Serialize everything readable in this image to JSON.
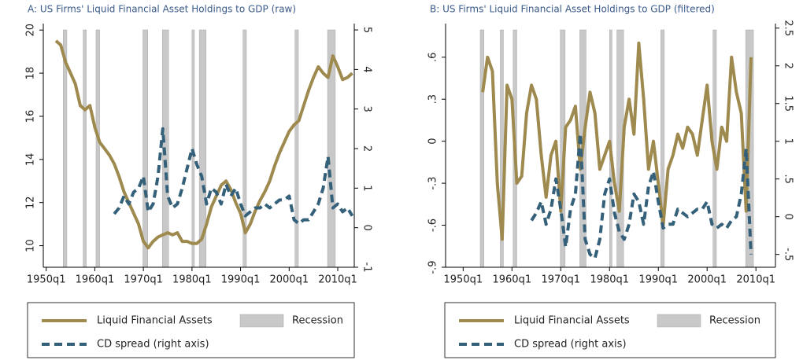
{
  "chart_data": [
    {
      "type": "line",
      "title": "A: US Firms' Liquid Financial Asset Holdings to GDP (raw)",
      "xlim": [
        1949.4,
        2013.4
      ],
      "xticks": [
        {
          "value": 1950,
          "label": "1950q1"
        },
        {
          "value": 1960,
          "label": "1960q1"
        },
        {
          "value": 1970,
          "label": "1970q1"
        },
        {
          "value": 1980,
          "label": "1980q1"
        },
        {
          "value": 1990,
          "label": "1990q1"
        },
        {
          "value": 2000,
          "label": "2000q1"
        },
        {
          "value": 2010,
          "label": "2010q1"
        }
      ],
      "ylim": [
        9,
        20.3
      ],
      "yticks": [
        10,
        12,
        14,
        16,
        18,
        20
      ],
      "y2lim": [
        -1,
        5.16
      ],
      "y2ticks": [
        -1,
        0,
        1,
        2,
        3,
        4,
        5
      ],
      "shading": {
        "name": "Recession",
        "color": "#c8c8c8",
        "periods": [
          [
            1953.5,
            1954.25
          ],
          [
            1957.6,
            1958.25
          ],
          [
            1960.25,
            1961.0
          ],
          [
            1969.9,
            1970.9
          ],
          [
            1973.9,
            1975.2
          ],
          [
            1980.0,
            1980.5
          ],
          [
            1981.5,
            1982.9
          ],
          [
            1990.5,
            1991.2
          ],
          [
            2001.2,
            2001.9
          ],
          [
            2007.9,
            2009.5
          ]
        ]
      },
      "series": [
        {
          "name": "Liquid Financial Assets",
          "color": "#9e8a4e",
          "style": "solid",
          "x": [
            1952,
            1953,
            1954,
            1955,
            1956,
            1957,
            1958,
            1959,
            1960,
            1961,
            1962,
            1963,
            1964,
            1965,
            1966,
            1967,
            1968,
            1969,
            1970,
            1971,
            1972,
            1973,
            1974,
            1975,
            1976,
            1977,
            1978,
            1979,
            1980,
            1981,
            1982,
            1983,
            1984,
            1985,
            1986,
            1987,
            1988,
            1989,
            1990,
            1991,
            1992,
            1993,
            1994,
            1995,
            1996,
            1997,
            1998,
            1999,
            2000,
            2001,
            2002,
            2003,
            2004,
            2005,
            2006,
            2007,
            2008,
            2009,
            2010,
            2011,
            2012,
            2013
          ],
          "values": [
            19.5,
            19.3,
            18.5,
            18.0,
            17.5,
            16.5,
            16.3,
            16.5,
            15.5,
            14.8,
            14.5,
            14.2,
            13.8,
            13.2,
            12.5,
            12.0,
            11.5,
            11.0,
            10.2,
            9.9,
            10.2,
            10.4,
            10.5,
            10.6,
            10.5,
            10.6,
            10.2,
            10.2,
            10.1,
            10.1,
            10.3,
            11.0,
            11.8,
            12.3,
            12.8,
            13.0,
            12.6,
            12.0,
            11.5,
            10.6,
            11.0,
            11.6,
            12.1,
            12.5,
            13.0,
            13.7,
            14.3,
            14.8,
            15.3,
            15.6,
            15.8,
            16.5,
            17.2,
            17.8,
            18.3,
            18.0,
            17.8,
            18.8,
            18.3,
            17.7,
            17.8,
            18.0
          ]
        },
        {
          "name": "CD spread (right axis)",
          "color": "#35607a",
          "style": "dashed",
          "axis": "y2",
          "x": [
            1964,
            1965,
            1966,
            1967,
            1968,
            1969,
            1970,
            1971,
            1972,
            1973,
            1974,
            1975,
            1976,
            1977,
            1978,
            1979,
            1980,
            1981,
            1982,
            1983,
            1984,
            1985,
            1986,
            1987,
            1988,
            1989,
            1990,
            1991,
            1992,
            1993,
            1994,
            1995,
            1996,
            1997,
            1998,
            1999,
            2000,
            2001,
            2002,
            2003,
            2004,
            2005,
            2006,
            2007,
            2008,
            2009,
            2010,
            2011,
            2012,
            2013
          ],
          "values": [
            0.35,
            0.5,
            0.8,
            0.6,
            0.9,
            1.0,
            1.3,
            0.4,
            0.6,
            1.3,
            2.5,
            0.8,
            0.5,
            0.6,
            1.0,
            1.5,
            2.0,
            1.6,
            1.3,
            0.6,
            1.0,
            0.9,
            0.6,
            1.1,
            0.8,
            1.0,
            0.6,
            0.3,
            0.4,
            0.5,
            0.5,
            0.6,
            0.5,
            0.6,
            0.7,
            0.7,
            0.8,
            0.2,
            0.1,
            0.2,
            0.2,
            0.4,
            0.6,
            1.0,
            1.8,
            0.5,
            0.6,
            0.4,
            0.5,
            0.3
          ]
        }
      ]
    },
    {
      "type": "line",
      "title": "B: US Firms' Liquid Financial Asset Holdings to GDP (filtered)",
      "xlim": [
        1946.4,
        2014
      ],
      "xticks": [
        {
          "value": 1950,
          "label": "1950q1"
        },
        {
          "value": 1960,
          "label": "1960q1"
        },
        {
          "value": 1970,
          "label": "1970q1"
        },
        {
          "value": 1980,
          "label": "1980q1"
        },
        {
          "value": 1990,
          "label": "1990q1"
        },
        {
          "value": 2000,
          "label": "2000q1"
        },
        {
          "value": 2010,
          "label": "2010q1"
        }
      ],
      "ylim": [
        -0.9,
        0.84
      ],
      "yticks": [
        {
          "value": -0.9,
          "label": "-.9"
        },
        {
          "value": -0.6,
          "label": "-.6"
        },
        {
          "value": -0.3,
          "label": "-.3"
        },
        0,
        {
          "value": 0.3,
          "label": ".3"
        },
        {
          "value": 0.6,
          "label": ".6"
        }
      ],
      "y2lim": [
        -0.67,
        2.56
      ],
      "y2ticks": [
        {
          "value": -0.5,
          "label": "-.5"
        },
        0,
        {
          "value": 0.5,
          "label": ".5"
        },
        1,
        {
          "value": 1.5,
          "label": "1.5"
        },
        2,
        {
          "value": 2.5,
          "label": "2.5"
        }
      ],
      "shading": {
        "name": "Recession",
        "color": "#c8c8c8",
        "periods": [
          [
            1953.5,
            1954.25
          ],
          [
            1957.6,
            1958.25
          ],
          [
            1960.25,
            1961.0
          ],
          [
            1969.9,
            1970.9
          ],
          [
            1973.9,
            1975.2
          ],
          [
            1980.0,
            1980.5
          ],
          [
            1981.5,
            1982.9
          ],
          [
            1990.5,
            1991.2
          ],
          [
            2001.2,
            2001.9
          ],
          [
            2007.9,
            2009.5
          ]
        ]
      },
      "series": [
        {
          "name": "Liquid Financial Assets",
          "color": "#9e8a4e",
          "style": "solid",
          "x": [
            1954,
            1955,
            1956,
            1957,
            1958,
            1959,
            1960,
            1961,
            1962,
            1963,
            1964,
            1965,
            1966,
            1967,
            1968,
            1969,
            1970,
            1971,
            1972,
            1973,
            1974,
            1975,
            1976,
            1977,
            1978,
            1979,
            1980,
            1981,
            1982,
            1983,
            1984,
            1985,
            1986,
            1987,
            1988,
            1989,
            1990,
            1991,
            1992,
            1993,
            1994,
            1995,
            1996,
            1997,
            1998,
            1999,
            2000,
            2001,
            2002,
            2003,
            2004,
            2005,
            2006,
            2007,
            2008,
            2009
          ],
          "values": [
            0.35,
            0.6,
            0.5,
            -0.3,
            -0.7,
            0.4,
            0.3,
            -0.3,
            -0.25,
            0.2,
            0.4,
            0.3,
            -0.1,
            -0.4,
            -0.1,
            0,
            -0.5,
            0.1,
            0.15,
            0.25,
            -0.2,
            0.1,
            0.35,
            0.2,
            -0.2,
            -0.1,
            0,
            -0.3,
            -0.5,
            0.1,
            0.3,
            0.05,
            0.7,
            0.3,
            -0.2,
            0,
            -0.3,
            -0.6,
            -0.2,
            -0.1,
            0.05,
            -0.05,
            0.1,
            0.05,
            -0.1,
            0.15,
            0.4,
            0,
            -0.2,
            0.1,
            0,
            0.6,
            0.35,
            0.2,
            -0.5,
            0.6
          ]
        },
        {
          "name": "CD spread (right axis)",
          "color": "#35607a",
          "style": "dashed",
          "axis": "y2",
          "x": [
            1964,
            1965,
            1966,
            1967,
            1968,
            1969,
            1970,
            1971,
            1972,
            1973,
            1974,
            1975,
            1976,
            1977,
            1978,
            1979,
            1980,
            1981,
            1982,
            1983,
            1984,
            1985,
            1986,
            1987,
            1988,
            1989,
            1990,
            1991,
            1992,
            1993,
            1994,
            1995,
            1996,
            1997,
            1998,
            1999,
            2000,
            2001,
            2002,
            2003,
            2004,
            2005,
            2006,
            2007,
            2008,
            2009
          ],
          "values": [
            -0.05,
            0.05,
            0.2,
            -0.1,
            0.1,
            0.5,
            0.1,
            -0.4,
            0.1,
            0.3,
            1.1,
            -0.3,
            -0.5,
            -0.55,
            -0.3,
            0.3,
            0.5,
            0.05,
            -0.2,
            -0.3,
            -0.1,
            0.3,
            0.2,
            -0.1,
            0.4,
            0.6,
            0.2,
            -0.15,
            -0.1,
            -0.1,
            0.1,
            0.05,
            0,
            0.05,
            0.1,
            0.1,
            0.2,
            -0.1,
            -0.15,
            -0.1,
            -0.15,
            -0.05,
            0,
            0.3,
            0.9,
            -0.5
          ]
        }
      ]
    }
  ]
}
